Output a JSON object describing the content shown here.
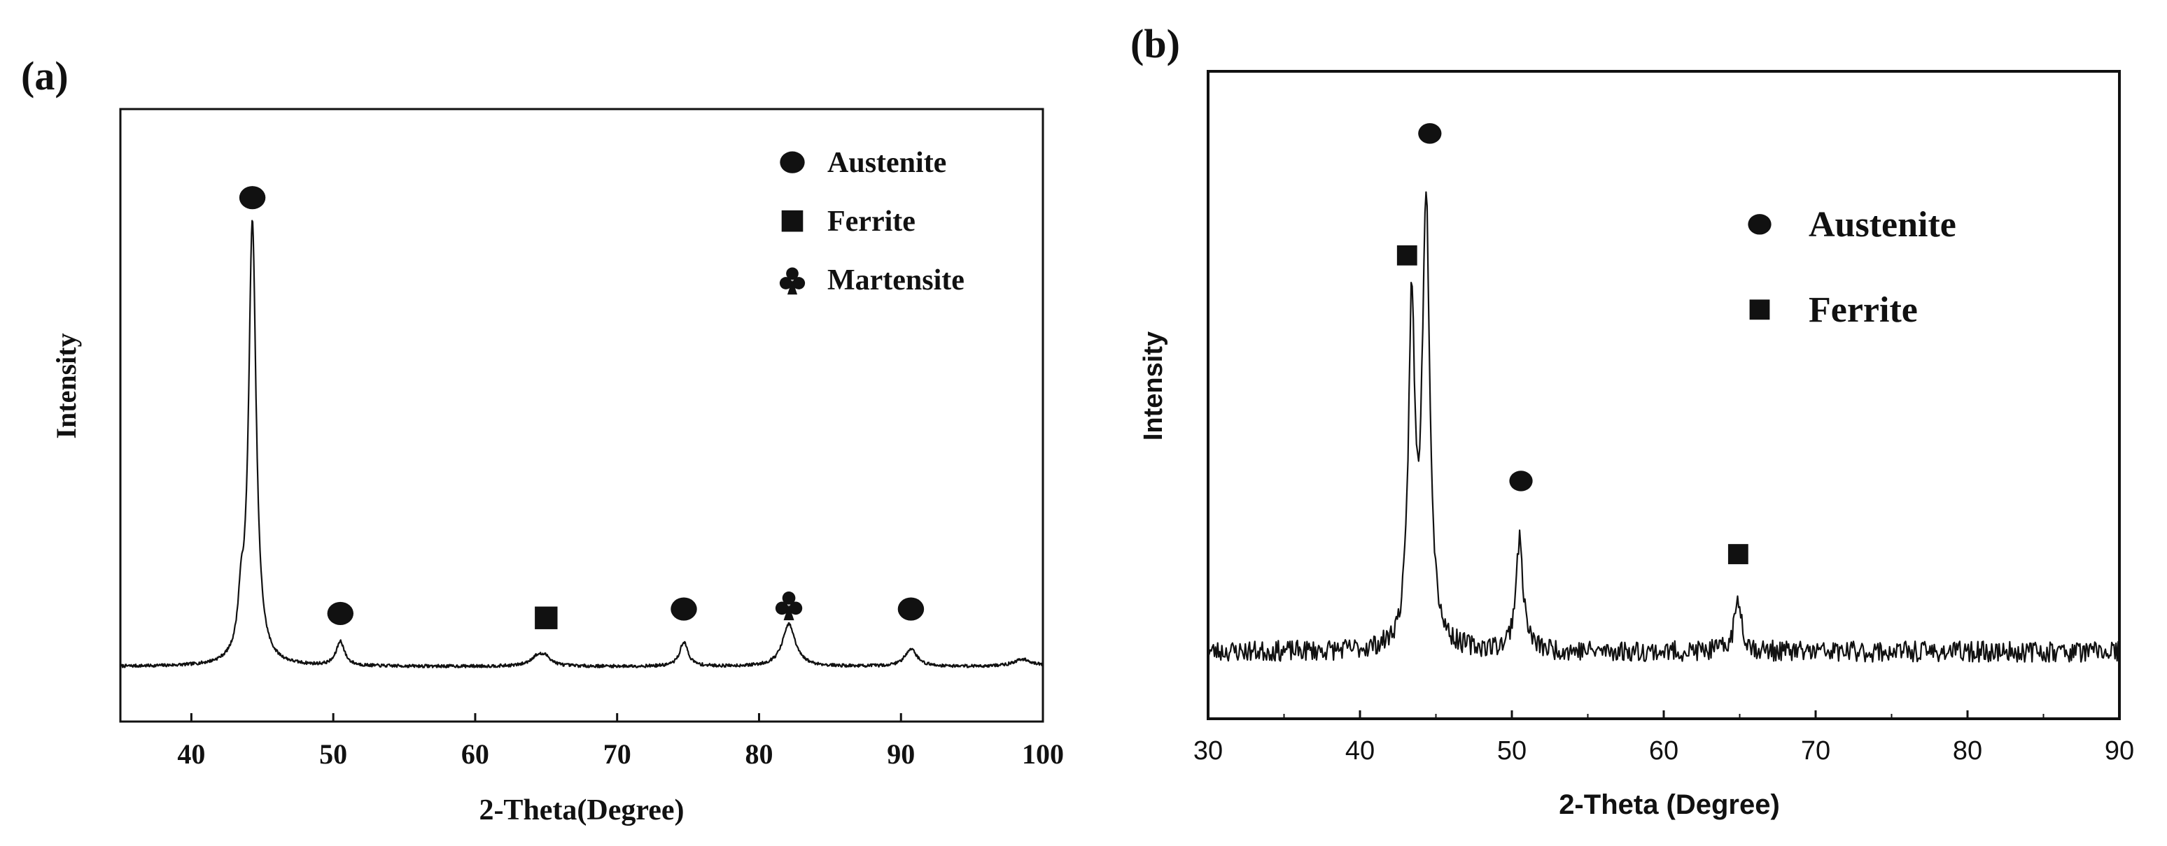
{
  "figure": {
    "background": "#ffffff",
    "ink": "#111111"
  },
  "chart_data": [
    {
      "panel_label": "(a)",
      "type": "line",
      "title": "",
      "xlabel": "2-Theta(Degree)",
      "ylabel": "Intensity",
      "xlim": [
        35,
        100
      ],
      "ylim": [
        0,
        110
      ],
      "xticks": [
        40,
        50,
        60,
        70,
        80,
        90,
        100
      ],
      "yticks_labeled": false,
      "grid": false,
      "baseline": 2,
      "noise": 0.35,
      "peaks": [
        {
          "x": 43.5,
          "height": 10,
          "width": 0.25
        },
        {
          "x": 44.3,
          "height": 100,
          "width": 0.32
        },
        {
          "x": 50.5,
          "height": 5.5,
          "width": 0.35
        },
        {
          "x": 64.4,
          "height": 2.2,
          "width": 0.6
        },
        {
          "x": 65.0,
          "height": 1.5,
          "width": 0.45
        },
        {
          "x": 74.7,
          "height": 5.5,
          "width": 0.35
        },
        {
          "x": 82.1,
          "height": 9.5,
          "width": 0.55
        },
        {
          "x": 90.7,
          "height": 4,
          "width": 0.5
        },
        {
          "x": 98.6,
          "height": 1.6,
          "width": 0.8
        }
      ],
      "annotations": [
        {
          "phase": "Austenite",
          "symbol": "circle",
          "x": 44.3,
          "y": 108
        },
        {
          "phase": "Austenite",
          "symbol": "circle",
          "x": 50.5,
          "y": 14
        },
        {
          "phase": "Ferrite",
          "symbol": "square",
          "x": 65.0,
          "y": 13
        },
        {
          "phase": "Austenite",
          "symbol": "circle",
          "x": 74.7,
          "y": 15
        },
        {
          "phase": "Martensite",
          "symbol": "club",
          "x": 82.1,
          "y": 16
        },
        {
          "phase": "Austenite",
          "symbol": "circle",
          "x": 90.7,
          "y": 15
        }
      ],
      "legend": {
        "position": "top-right",
        "entries": [
          {
            "symbol": "circle",
            "label": "Austenite"
          },
          {
            "symbol": "square",
            "label": "Ferrite"
          },
          {
            "symbol": "club",
            "label": "Martensite"
          }
        ]
      }
    },
    {
      "panel_label": "(b)",
      "type": "line",
      "title": "",
      "xlabel": "2-Theta (Degree)",
      "ylabel": "Intensity",
      "xlim": [
        30,
        90
      ],
      "ylim": [
        0,
        100
      ],
      "xticks": [
        30,
        40,
        50,
        60,
        70,
        80,
        90
      ],
      "yticks_labeled": false,
      "grid": false,
      "baseline": 11,
      "noise": 1.7,
      "peaks": [
        {
          "x": 43.4,
          "height": 54,
          "width": 0.25
        },
        {
          "x": 44.35,
          "height": 73,
          "width": 0.3
        },
        {
          "x": 50.5,
          "height": 18,
          "width": 0.3
        },
        {
          "x": 64.9,
          "height": 8.5,
          "width": 0.3
        }
      ],
      "annotations": [
        {
          "phase": "Austenite",
          "symbol": "circle",
          "x": 44.6,
          "y": 96
        },
        {
          "phase": "Ferrite",
          "symbol": "square",
          "x": 43.1,
          "y": 76
        },
        {
          "phase": "Austenite",
          "symbol": "circle",
          "x": 50.6,
          "y": 39
        },
        {
          "phase": "Ferrite",
          "symbol": "square",
          "x": 64.9,
          "y": 27
        }
      ],
      "legend": {
        "position": "top-right",
        "entries": [
          {
            "symbol": "circle",
            "label": "Austenite"
          },
          {
            "symbol": "square",
            "label": "Ferrite"
          }
        ]
      }
    }
  ]
}
